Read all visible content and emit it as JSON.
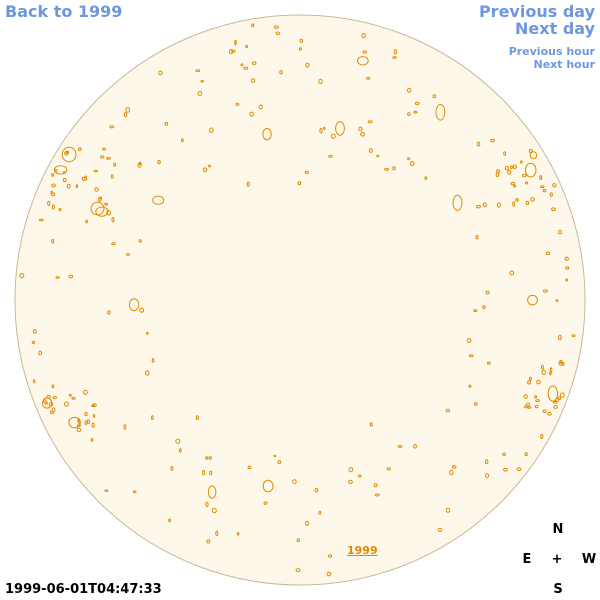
{
  "nav": {
    "back": "Back to 1999",
    "previous_day": "Previous day",
    "next_day": "Next day",
    "previous_hour": "Previous hour",
    "next_hour": "Next hour"
  },
  "timestamp": "1999-06-01T04:47:33",
  "year_label": "1999",
  "compass": {
    "north": "N",
    "east": "E",
    "center": "+",
    "west": "W",
    "south": "S"
  }
}
